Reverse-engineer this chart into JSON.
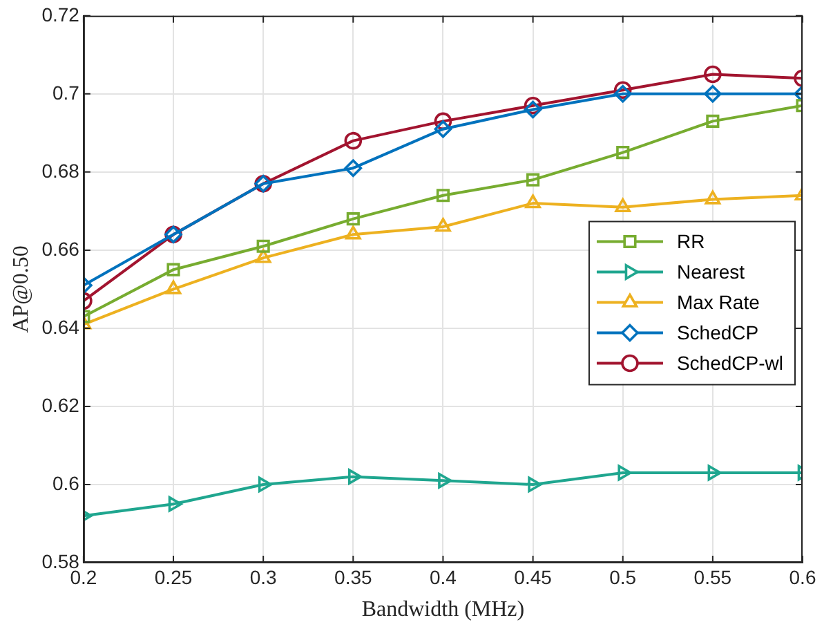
{
  "chart_data": {
    "type": "line",
    "xlabel": "Bandwidth (MHz)",
    "ylabel": "AP@0.50",
    "x": [
      0.2,
      0.25,
      0.3,
      0.35,
      0.4,
      0.45,
      0.5,
      0.55,
      0.6
    ],
    "xlim": [
      0.2,
      0.6
    ],
    "xticks": [
      0.2,
      0.25,
      0.3,
      0.35,
      0.4,
      0.45,
      0.5,
      0.55,
      0.6
    ],
    "ylim": [
      0.58,
      0.72
    ],
    "yticks": [
      0.58,
      0.6,
      0.62,
      0.64,
      0.66,
      0.68,
      0.7,
      0.72
    ],
    "grid": true,
    "legend": "right",
    "line_style": "solid",
    "series": [
      {
        "name": "RR",
        "color": "#77ac30",
        "marker": "square",
        "values": [
          0.643,
          0.655,
          0.661,
          0.668,
          0.674,
          0.678,
          0.685,
          0.693,
          0.697
        ]
      },
      {
        "name": "Nearest",
        "color": "#1fa68f",
        "marker": "triangle-right",
        "values": [
          0.592,
          0.595,
          0.6,
          0.602,
          0.601,
          0.6,
          0.603,
          0.603,
          0.603
        ]
      },
      {
        "name": "Max Rate",
        "color": "#edb120",
        "marker": "triangle",
        "values": [
          0.641,
          0.65,
          0.658,
          0.664,
          0.666,
          0.672,
          0.671,
          0.673,
          0.674
        ]
      },
      {
        "name": "SchedCP",
        "color": "#0072bd",
        "marker": "diamond",
        "values": [
          0.651,
          0.664,
          0.677,
          0.681,
          0.691,
          0.696,
          0.7,
          0.7,
          0.7
        ]
      },
      {
        "name": "SchedCP-wl",
        "color": "#a2142f",
        "marker": "circle",
        "values": [
          0.647,
          0.664,
          0.677,
          0.688,
          0.693,
          0.697,
          0.701,
          0.705,
          0.704
        ]
      }
    ]
  }
}
